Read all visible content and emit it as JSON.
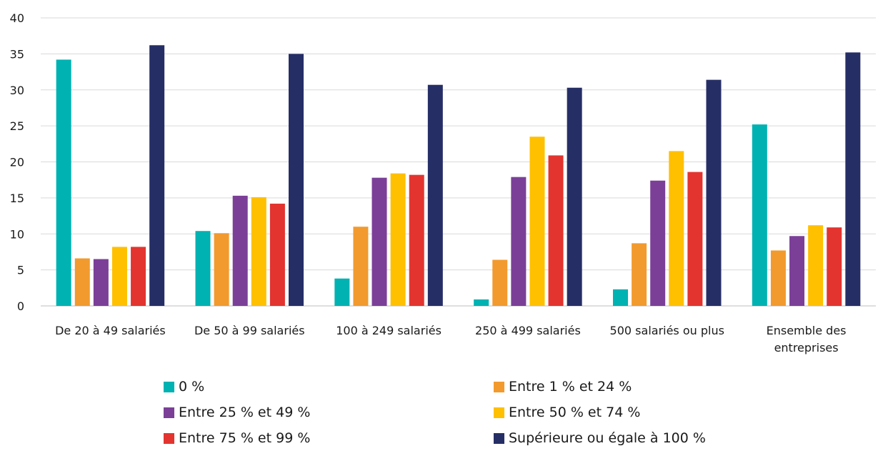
{
  "chart_data": {
    "type": "bar",
    "title": "",
    "xlabel": "",
    "ylabel": "",
    "ylim": [
      0,
      40
    ],
    "yticks": [
      0,
      5,
      10,
      15,
      20,
      25,
      30,
      35,
      40
    ],
    "grid": true,
    "legend_position": "bottom",
    "categories": [
      [
        "De 20 à 49 salariés"
      ],
      [
        "De 50 à 99 salariés"
      ],
      [
        "100 à 249 salariés"
      ],
      [
        "250 à 499 salariés"
      ],
      [
        "500 salariés ou plus"
      ],
      [
        "Ensemble des",
        "entreprises"
      ]
    ],
    "series": [
      {
        "name": "0 %",
        "color": "#00b2b2",
        "values": [
          34.2,
          10.4,
          3.8,
          0.9,
          2.3,
          25.2
        ]
      },
      {
        "name": "Entre 1 % et 24 %",
        "color": "#f29a2e",
        "values": [
          6.6,
          10.1,
          11.0,
          6.4,
          8.7,
          7.7
        ]
      },
      {
        "name": "Entre 25 % et 49 %",
        "color": "#7b3f98",
        "values": [
          6.5,
          15.3,
          17.8,
          17.9,
          17.4,
          9.7
        ]
      },
      {
        "name": "Entre 50 % et 74 %",
        "color": "#ffc000",
        "values": [
          8.2,
          15.1,
          18.4,
          23.5,
          21.5,
          11.2
        ]
      },
      {
        "name": "Entre 75 % et 99 %",
        "color": "#e3342f",
        "values": [
          8.2,
          14.2,
          18.2,
          20.9,
          18.6,
          10.9
        ]
      },
      {
        "name": "Supérieure ou égale à 100 %",
        "color": "#262e66",
        "values": [
          36.2,
          35.0,
          30.7,
          30.3,
          31.4,
          35.2
        ]
      }
    ]
  }
}
